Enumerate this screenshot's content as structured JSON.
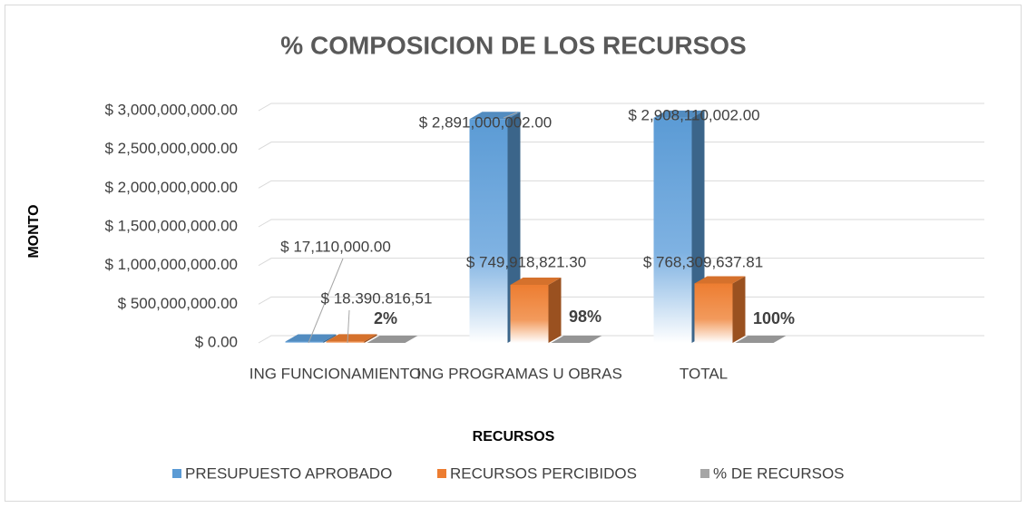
{
  "chart_data": {
    "type": "bar3d",
    "title": "% COMPOSICION DE LOS RECURSOS",
    "x_label": "RECURSOS",
    "y_label": "MONTO",
    "categories": [
      "ING FUNCIONAMIENTO",
      "ING PROGRAMAS U OBRAS",
      "TOTAL"
    ],
    "series": [
      {
        "name": "PRESUPUESTO APROBADO",
        "color": "#5b9bd5",
        "values": [
          17110000,
          2891000002,
          2908110002
        ],
        "value_labels": [
          "$ 17,110,000.00",
          "$ 2,891,000,002.00",
          "$ 2,908,110,002.00"
        ]
      },
      {
        "name": "RECURSOS PERCIBIDOS",
        "color": "#ed7d31",
        "values": [
          18390816.51,
          749918821.3,
          768309637.81
        ],
        "value_labels": [
          "$ 18.390.816,51",
          "$ 749,918,821.30",
          "$ 768,309,637.81"
        ]
      },
      {
        "name": "% DE RECURSOS",
        "color": "#a5a5a5",
        "values": [
          2,
          98,
          100
        ],
        "value_labels": [
          "2%",
          "98%",
          "100%"
        ]
      }
    ],
    "ylim": [
      0,
      3000000000
    ],
    "yticks": [
      {
        "value": 0,
        "label": "$ 0.00"
      },
      {
        "value": 500000000,
        "label": "$ 500,000,000.00"
      },
      {
        "value": 1000000000,
        "label": "$ 1,000,000,000.00"
      },
      {
        "value": 1500000000,
        "label": "$ 1,500,000,000.00"
      },
      {
        "value": 2000000000,
        "label": "$ 2,000,000,000.00"
      },
      {
        "value": 2500000000,
        "label": "$ 2,500,000,000.00"
      },
      {
        "value": 3000000000,
        "label": "$ 3,000,000,000.00"
      }
    ],
    "grid": true,
    "legend": "bottom"
  }
}
